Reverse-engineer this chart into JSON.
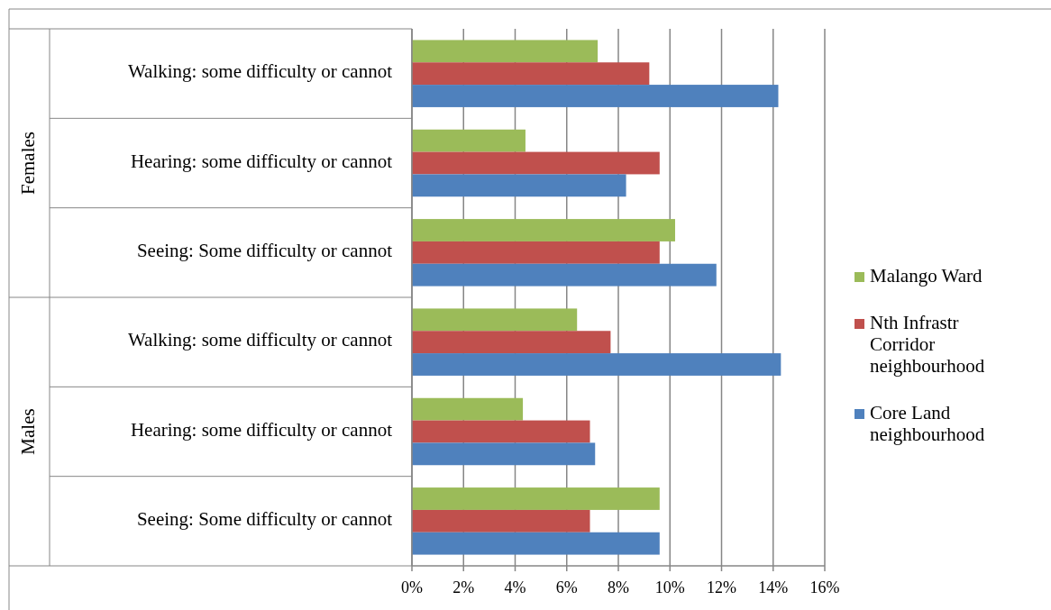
{
  "chart_data": {
    "type": "bar",
    "orientation": "horizontal",
    "categories": [
      "Walking: some difficulty or cannot",
      "Hearing: some difficulty or cannot",
      "Seeing: Some difficulty or cannot",
      "Walking: some difficulty or cannot",
      "Hearing: some difficulty or cannot",
      "Seeing: Some difficulty or cannot"
    ],
    "series": [
      {
        "name": "Malango Ward",
        "color": "#9bbb59",
        "values": [
          7.2,
          4.4,
          10.2,
          6.4,
          4.3,
          9.6
        ]
      },
      {
        "name": "Nth Infrastr Corridor neighbourhood",
        "color": "#c0504d",
        "values": [
          9.2,
          9.6,
          9.6,
          7.7,
          6.9,
          6.9
        ]
      },
      {
        "name": "Core Land neighbourhood",
        "color": "#4f81bd",
        "values": [
          14.2,
          8.3,
          11.8,
          14.3,
          7.1,
          9.6
        ]
      }
    ],
    "xlim": [
      0,
      16
    ],
    "xticks": [
      {
        "value": 0,
        "label": "0%"
      },
      {
        "value": 2,
        "label": "2%"
      },
      {
        "value": 4,
        "label": "4%"
      },
      {
        "value": 6,
        "label": "6%"
      },
      {
        "value": 8,
        "label": "8%"
      },
      {
        "value": 10,
        "label": "10%"
      },
      {
        "value": 12,
        "label": "12%"
      },
      {
        "value": 14,
        "label": "14%"
      },
      {
        "value": 16,
        "label": "16%"
      }
    ],
    "grid": "x",
    "legend": "right",
    "annotations": [
      "Females",
      "Males"
    ]
  }
}
